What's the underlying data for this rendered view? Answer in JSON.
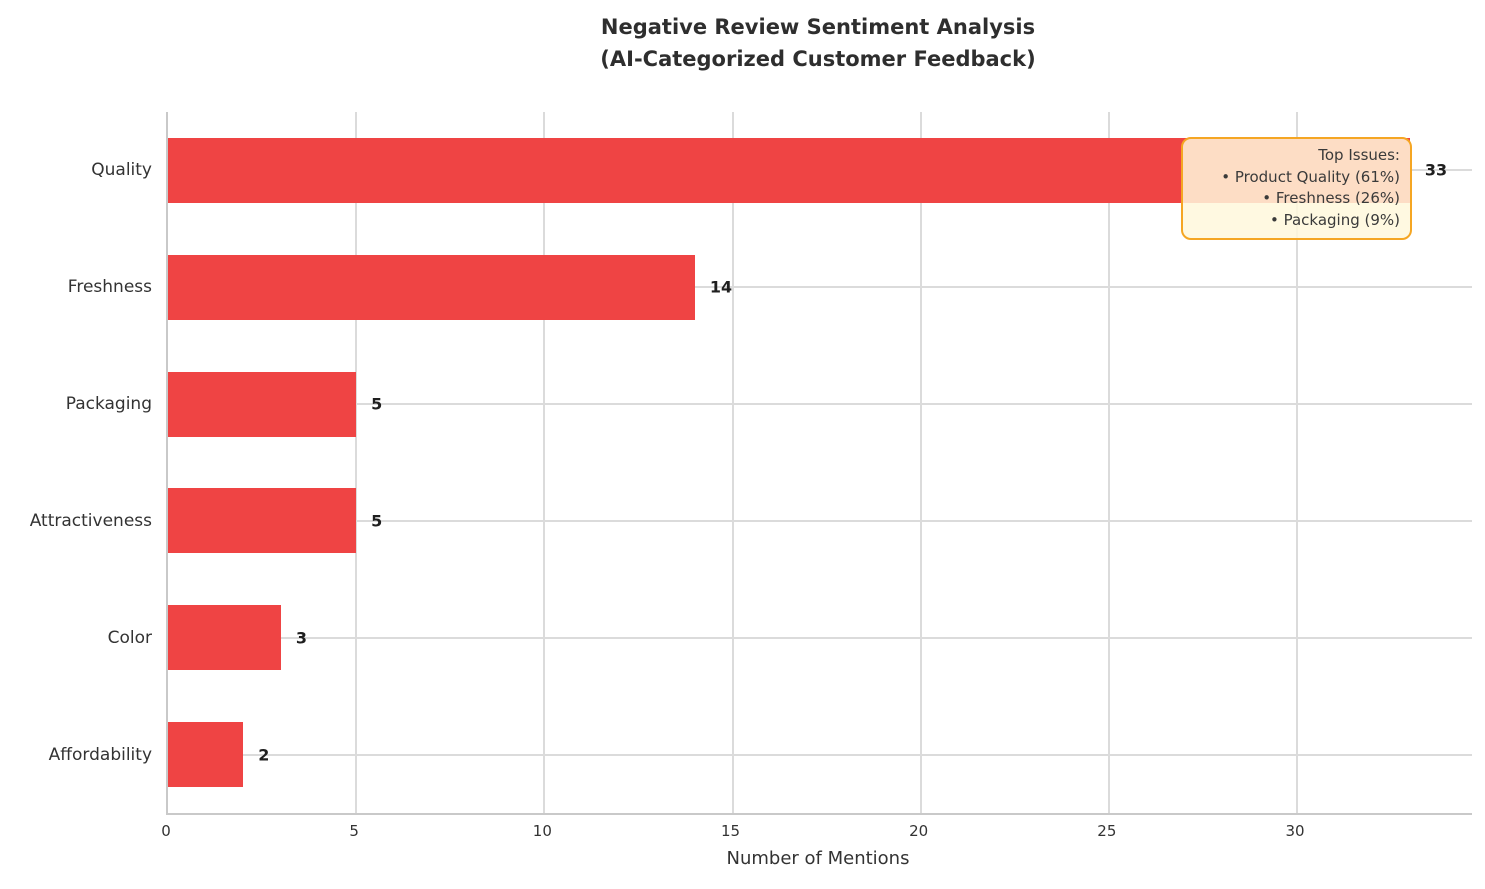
{
  "title": {
    "line1": "Negative Review Sentiment Analysis",
    "line2": "(AI-Categorized Customer Feedback)"
  },
  "chart_data": {
    "type": "bar",
    "orientation": "horizontal",
    "title": "Negative Review Sentiment Analysis (AI-Categorized Customer Feedback)",
    "categories": [
      "Quality",
      "Freshness",
      "Packaging",
      "Attractiveness",
      "Color",
      "Affordability"
    ],
    "values": [
      33,
      14,
      5,
      5,
      3,
      2
    ],
    "value_labels": [
      "33",
      "14",
      "5",
      "5",
      "3",
      "2"
    ],
    "xlabel": "Number of Mentions",
    "ylabel": "",
    "xlim": [
      0,
      34.65
    ],
    "xticks": [
      0,
      5,
      10,
      15,
      20,
      25,
      30
    ],
    "grid": true,
    "legend": "none",
    "annotation": {
      "lines": [
        "Top Issues:",
        "• Product Quality (61%)",
        "• Freshness (26%)",
        "• Packaging (9%)"
      ]
    }
  },
  "colors": {
    "bar": "#EF4444",
    "grid": "#DBDBDB",
    "spine": "#C9C9C9",
    "title_text": "#2E2E2E",
    "text": "#333333",
    "annotation_bg": "#FFF8DC",
    "annotation_border": "#F5A623"
  }
}
